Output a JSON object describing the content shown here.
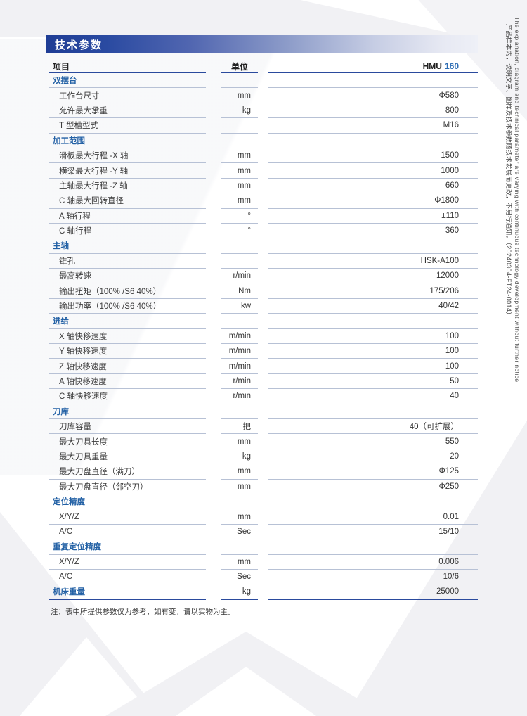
{
  "page": {
    "banner_title": "技术参数",
    "footnote": "注：表中所提供参数仅为参考，如有变，请以实物为主。",
    "side_note_en": "The explanation, diagram and technical parameter are varying with continuous technology development without further notice.",
    "side_note_zh": "产品样本内，说明文字、图样及技术参数随技术发展而更改，不另行通知。（20240304-FT24-0014）"
  },
  "colors": {
    "brand_navy": "#2a4a9d",
    "accent_blue": "#2e6db4",
    "section_blue": "#2361a5",
    "row_line": "#b7c1d5"
  },
  "table": {
    "columns": {
      "item": "项目",
      "unit": "单位",
      "model_prefix": "HMU",
      "model_number": "160"
    },
    "sections": [
      {
        "title": "双摆台",
        "rows": [
          {
            "label": "工作台尺寸",
            "unit": "mm",
            "value": "Φ580"
          },
          {
            "label": "允许最大承重",
            "unit": "kg",
            "value": "800"
          },
          {
            "label": "T 型槽型式",
            "unit": "",
            "value": "M16"
          }
        ]
      },
      {
        "title": "加工范围",
        "rows": [
          {
            "label": "滑板最大行程 -X 轴",
            "unit": "mm",
            "value": "1500"
          },
          {
            "label": "横梁最大行程 -Y 轴",
            "unit": "mm",
            "value": "1000"
          },
          {
            "label": "主轴最大行程 -Z 轴",
            "unit": "mm",
            "value": "660"
          },
          {
            "label": "C 轴最大回转直径",
            "unit": "mm",
            "value": "Φ1800"
          },
          {
            "label": "A 轴行程",
            "unit": "°",
            "value": "±110"
          },
          {
            "label": "C 轴行程",
            "unit": "°",
            "value": "360"
          }
        ]
      },
      {
        "title": "主轴",
        "rows": [
          {
            "label": "锥孔",
            "unit": "",
            "value": "HSK-A100"
          },
          {
            "label": "最高转速",
            "unit": "r/min",
            "value": "12000"
          },
          {
            "label": "输出扭矩（100% /S6 40%）",
            "unit": "Nm",
            "value": "175/206"
          },
          {
            "label": "输出功率（100% /S6 40%）",
            "unit": "kw",
            "value": "40/42"
          }
        ]
      },
      {
        "title": "进给",
        "rows": [
          {
            "label": "X 轴快移速度",
            "unit": "m/min",
            "value": "100"
          },
          {
            "label": "Y 轴快移速度",
            "unit": "m/min",
            "value": "100"
          },
          {
            "label": "Z 轴快移速度",
            "unit": "m/min",
            "value": "100"
          },
          {
            "label": "A 轴快移速度",
            "unit": "r/min",
            "value": "50"
          },
          {
            "label": "C 轴快移速度",
            "unit": "r/min",
            "value": "40"
          }
        ]
      },
      {
        "title": "刀库",
        "rows": [
          {
            "label": "刀库容量",
            "unit": "把",
            "value": "40（可扩展）"
          },
          {
            "label": "最大刀具长度",
            "unit": "mm",
            "value": "550"
          },
          {
            "label": "最大刀具重量",
            "unit": "kg",
            "value": "20"
          },
          {
            "label": "最大刀盘直径（满刀）",
            "unit": "mm",
            "value": "Φ125"
          },
          {
            "label": "最大刀盘直径（邻空刀）",
            "unit": "mm",
            "value": "Φ250"
          }
        ]
      },
      {
        "title": "定位精度",
        "rows": [
          {
            "label": "X/Y/Z",
            "unit": "mm",
            "value": "0.01"
          },
          {
            "label": "A/C",
            "unit": "Sec",
            "value": "15/10"
          }
        ]
      },
      {
        "title": "重复定位精度",
        "rows": [
          {
            "label": "X/Y/Z",
            "unit": "mm",
            "value": "0.006"
          },
          {
            "label": "A/C",
            "unit": "Sec",
            "value": "10/6"
          }
        ]
      },
      {
        "title": "机床重量",
        "summary": true,
        "unit": "kg",
        "value": "25000",
        "rows": []
      }
    ]
  }
}
